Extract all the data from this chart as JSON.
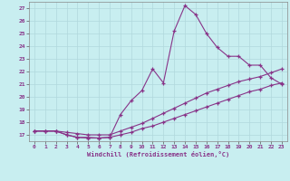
{
  "xlabel": "Windchill (Refroidissement éolien,°C)",
  "background_color": "#c8eef0",
  "grid_color": "#b0d8dc",
  "line_color": "#883388",
  "xlim": [
    -0.5,
    23.5
  ],
  "ylim": [
    16.5,
    27.5
  ],
  "xticks": [
    0,
    1,
    2,
    3,
    4,
    5,
    6,
    7,
    8,
    9,
    10,
    11,
    12,
    13,
    14,
    15,
    16,
    17,
    18,
    19,
    20,
    21,
    22,
    23
  ],
  "yticks": [
    17,
    18,
    19,
    20,
    21,
    22,
    23,
    24,
    25,
    26,
    27
  ],
  "line1_x": [
    0,
    1,
    2,
    3,
    4,
    5,
    6,
    7,
    8,
    9,
    10,
    11,
    12,
    13,
    14,
    15,
    16,
    17,
    18,
    19,
    20,
    21,
    22,
    23
  ],
  "line1_y": [
    17.3,
    17.3,
    17.3,
    17.0,
    16.8,
    16.8,
    16.75,
    16.8,
    18.6,
    19.7,
    20.5,
    22.2,
    21.1,
    25.2,
    27.2,
    26.5,
    25.0,
    23.9,
    23.2,
    23.2,
    22.5,
    22.5,
    21.5,
    21.0
  ],
  "line2_x": [
    0,
    1,
    2,
    3,
    4,
    5,
    6,
    7,
    8,
    9,
    10,
    11,
    12,
    13,
    14,
    15,
    16,
    17,
    18,
    19,
    20,
    21,
    22,
    23
  ],
  "line2_y": [
    17.3,
    17.3,
    17.3,
    17.2,
    17.1,
    17.0,
    17.0,
    17.0,
    17.3,
    17.6,
    17.9,
    18.3,
    18.7,
    19.1,
    19.5,
    19.9,
    20.3,
    20.6,
    20.9,
    21.2,
    21.4,
    21.6,
    21.9,
    22.2
  ],
  "line3_x": [
    0,
    1,
    2,
    3,
    4,
    5,
    6,
    7,
    8,
    9,
    10,
    11,
    12,
    13,
    14,
    15,
    16,
    17,
    18,
    19,
    20,
    21,
    22,
    23
  ],
  "line3_y": [
    17.3,
    17.3,
    17.3,
    17.0,
    16.8,
    16.75,
    16.75,
    16.8,
    17.0,
    17.2,
    17.5,
    17.7,
    18.0,
    18.3,
    18.6,
    18.9,
    19.2,
    19.5,
    19.8,
    20.1,
    20.4,
    20.6,
    20.9,
    21.1
  ]
}
